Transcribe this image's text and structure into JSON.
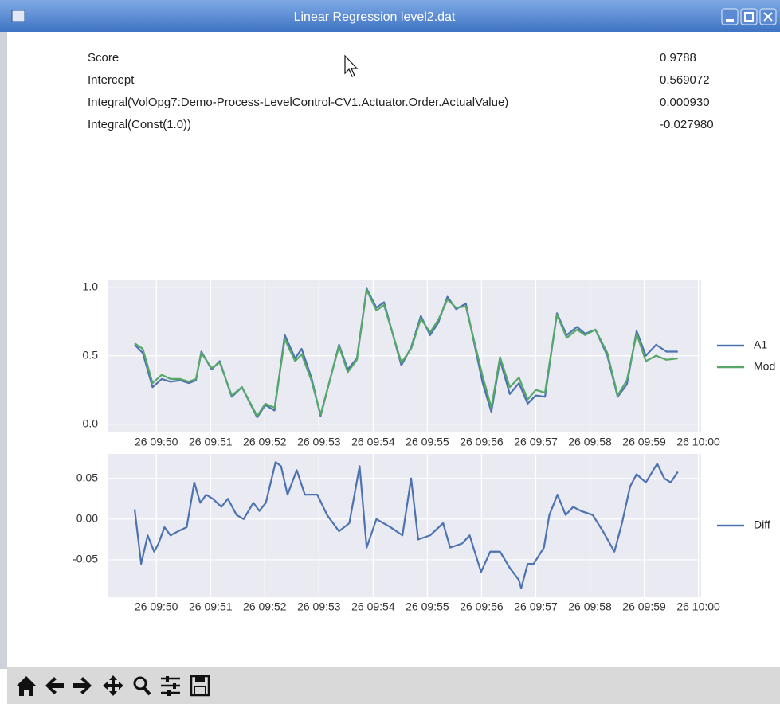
{
  "window": {
    "title": "Linear Regression level2.dat"
  },
  "stats": {
    "rows": [
      [
        "Score",
        "0.9788"
      ],
      [
        "Intercept",
        "0.569072"
      ],
      [
        "Integral(VolOpg7:Demo-Process-LevelControl-CV1.Actuator.Order.ActualValue)",
        "0.000930"
      ],
      [
        "Integral(Const(1.0))",
        "-0.027980"
      ]
    ]
  },
  "chart_data": [
    {
      "type": "line",
      "x": [
        49.6,
        49.75,
        49.93,
        50.1,
        50.26,
        50.44,
        50.6,
        50.73,
        50.83,
        51.02,
        51.17,
        51.39,
        51.58,
        51.86,
        52.01,
        52.18,
        52.37,
        52.56,
        52.68,
        52.86,
        53.03,
        53.37,
        53.53,
        53.7,
        53.88,
        54.06,
        54.2,
        54.52,
        54.7,
        54.88,
        55.05,
        55.2,
        55.37,
        55.53,
        55.71,
        56.02,
        56.18,
        56.34,
        56.52,
        56.69,
        56.85,
        57.0,
        57.17,
        57.39,
        57.57,
        57.76,
        57.91,
        58.1,
        58.32,
        58.51,
        58.68,
        58.86,
        59.03,
        59.22,
        59.41,
        59.62
      ],
      "series": [
        {
          "name": "A1",
          "color": "#4c72b0",
          "values": [
            0.58,
            0.52,
            0.27,
            0.33,
            0.31,
            0.32,
            0.3,
            0.32,
            0.53,
            0.4,
            0.46,
            0.2,
            0.27,
            0.05,
            0.14,
            0.1,
            0.65,
            0.48,
            0.55,
            0.34,
            0.06,
            0.58,
            0.4,
            0.48,
            0.99,
            0.85,
            0.89,
            0.43,
            0.56,
            0.79,
            0.65,
            0.74,
            0.93,
            0.84,
            0.88,
            0.3,
            0.09,
            0.47,
            0.22,
            0.3,
            0.15,
            0.21,
            0.2,
            0.81,
            0.65,
            0.71,
            0.66,
            0.69,
            0.5,
            0.2,
            0.29,
            0.68,
            0.5,
            0.58,
            0.53,
            0.53
          ]
        },
        {
          "name": "Mod",
          "color": "#55a868",
          "values": [
            0.59,
            0.55,
            0.3,
            0.36,
            0.33,
            0.33,
            0.31,
            0.33,
            0.52,
            0.41,
            0.45,
            0.21,
            0.27,
            0.06,
            0.15,
            0.12,
            0.62,
            0.46,
            0.51,
            0.32,
            0.07,
            0.57,
            0.38,
            0.47,
            0.98,
            0.83,
            0.87,
            0.45,
            0.55,
            0.77,
            0.67,
            0.76,
            0.91,
            0.85,
            0.86,
            0.35,
            0.12,
            0.49,
            0.27,
            0.34,
            0.18,
            0.25,
            0.23,
            0.8,
            0.63,
            0.69,
            0.65,
            0.69,
            0.52,
            0.21,
            0.32,
            0.66,
            0.46,
            0.5,
            0.47,
            0.48
          ]
        }
      ],
      "xlim": [
        49.1,
        60.05
      ],
      "xticks": [
        {
          "value": 50,
          "label": "26 09:50"
        },
        {
          "value": 51,
          "label": "26 09:51"
        },
        {
          "value": 52,
          "label": "26 09:52"
        },
        {
          "value": 53,
          "label": "26 09:53"
        },
        {
          "value": 54,
          "label": "26 09:54"
        },
        {
          "value": 55,
          "label": "26 09:55"
        },
        {
          "value": 56,
          "label": "26 09:56"
        },
        {
          "value": 57,
          "label": "26 09:57"
        },
        {
          "value": 58,
          "label": "26 09:58"
        },
        {
          "value": 59,
          "label": "26 09:59"
        },
        {
          "value": 60,
          "label": "26 10:00"
        }
      ],
      "ylim": [
        -0.06,
        1.05
      ],
      "yticks": [
        {
          "value": 0,
          "label": "0.0"
        },
        {
          "value": 0.5,
          "label": "0.5"
        },
        {
          "value": 1,
          "label": "1.0"
        }
      ],
      "grid": true,
      "legend": "outside-right"
    },
    {
      "type": "line",
      "x": [
        49.6,
        49.72,
        49.84,
        49.96,
        50.04,
        50.15,
        50.26,
        50.4,
        50.56,
        50.7,
        50.81,
        50.92,
        51.04,
        51.2,
        51.32,
        51.48,
        51.61,
        51.79,
        51.9,
        52.02,
        52.2,
        52.3,
        52.42,
        52.59,
        52.74,
        52.97,
        53.15,
        53.37,
        53.56,
        53.75,
        53.88,
        54.06,
        54.32,
        54.54,
        54.7,
        54.83,
        55.05,
        55.29,
        55.42,
        55.64,
        55.78,
        55.99,
        56.16,
        56.34,
        56.52,
        56.69,
        56.73,
        56.85,
        56.96,
        57.15,
        57.25,
        57.4,
        57.55,
        57.69,
        57.83,
        58.05,
        58.24,
        58.45,
        58.59,
        58.74,
        58.86,
        59.03,
        59.24,
        59.37,
        59.49,
        59.62
      ],
      "series": [
        {
          "name": "Diff",
          "color": "#4c72b0",
          "values": [
            0.012,
            -0.055,
            -0.02,
            -0.04,
            -0.03,
            -0.01,
            -0.02,
            -0.015,
            -0.01,
            0.045,
            0.02,
            0.03,
            0.025,
            0.015,
            0.025,
            0.005,
            0.0,
            0.02,
            0.01,
            0.02,
            0.07,
            0.065,
            0.03,
            0.06,
            0.03,
            0.03,
            0.005,
            -0.015,
            -0.005,
            0.065,
            -0.035,
            0.0,
            -0.01,
            -0.02,
            0.05,
            -0.025,
            -0.02,
            -0.005,
            -0.035,
            -0.03,
            -0.02,
            -0.065,
            -0.04,
            -0.04,
            -0.06,
            -0.075,
            -0.085,
            -0.055,
            -0.055,
            -0.035,
            0.005,
            0.03,
            0.005,
            0.015,
            0.01,
            0.005,
            -0.015,
            -0.04,
            -0.005,
            0.04,
            0.055,
            0.045,
            0.068,
            0.05,
            0.045,
            0.058
          ]
        }
      ],
      "xlim": [
        49.1,
        60.05
      ],
      "xticks": [
        {
          "value": 50,
          "label": "26 09:50"
        },
        {
          "value": 51,
          "label": "26 09:51"
        },
        {
          "value": 52,
          "label": "26 09:52"
        },
        {
          "value": 53,
          "label": "26 09:53"
        },
        {
          "value": 54,
          "label": "26 09:54"
        },
        {
          "value": 55,
          "label": "26 09:55"
        },
        {
          "value": 56,
          "label": "26 09:56"
        },
        {
          "value": 57,
          "label": "26 09:57"
        },
        {
          "value": 58,
          "label": "26 09:58"
        },
        {
          "value": 59,
          "label": "26 09:59"
        },
        {
          "value": 60,
          "label": "26 10:00"
        }
      ],
      "ylim": [
        -0.096,
        0.08
      ],
      "yticks": [
        0.05,
        {
          "value": 0,
          "label": "0.00"
        },
        -0.05
      ],
      "grid": true,
      "legend": "outside-right"
    }
  ]
}
